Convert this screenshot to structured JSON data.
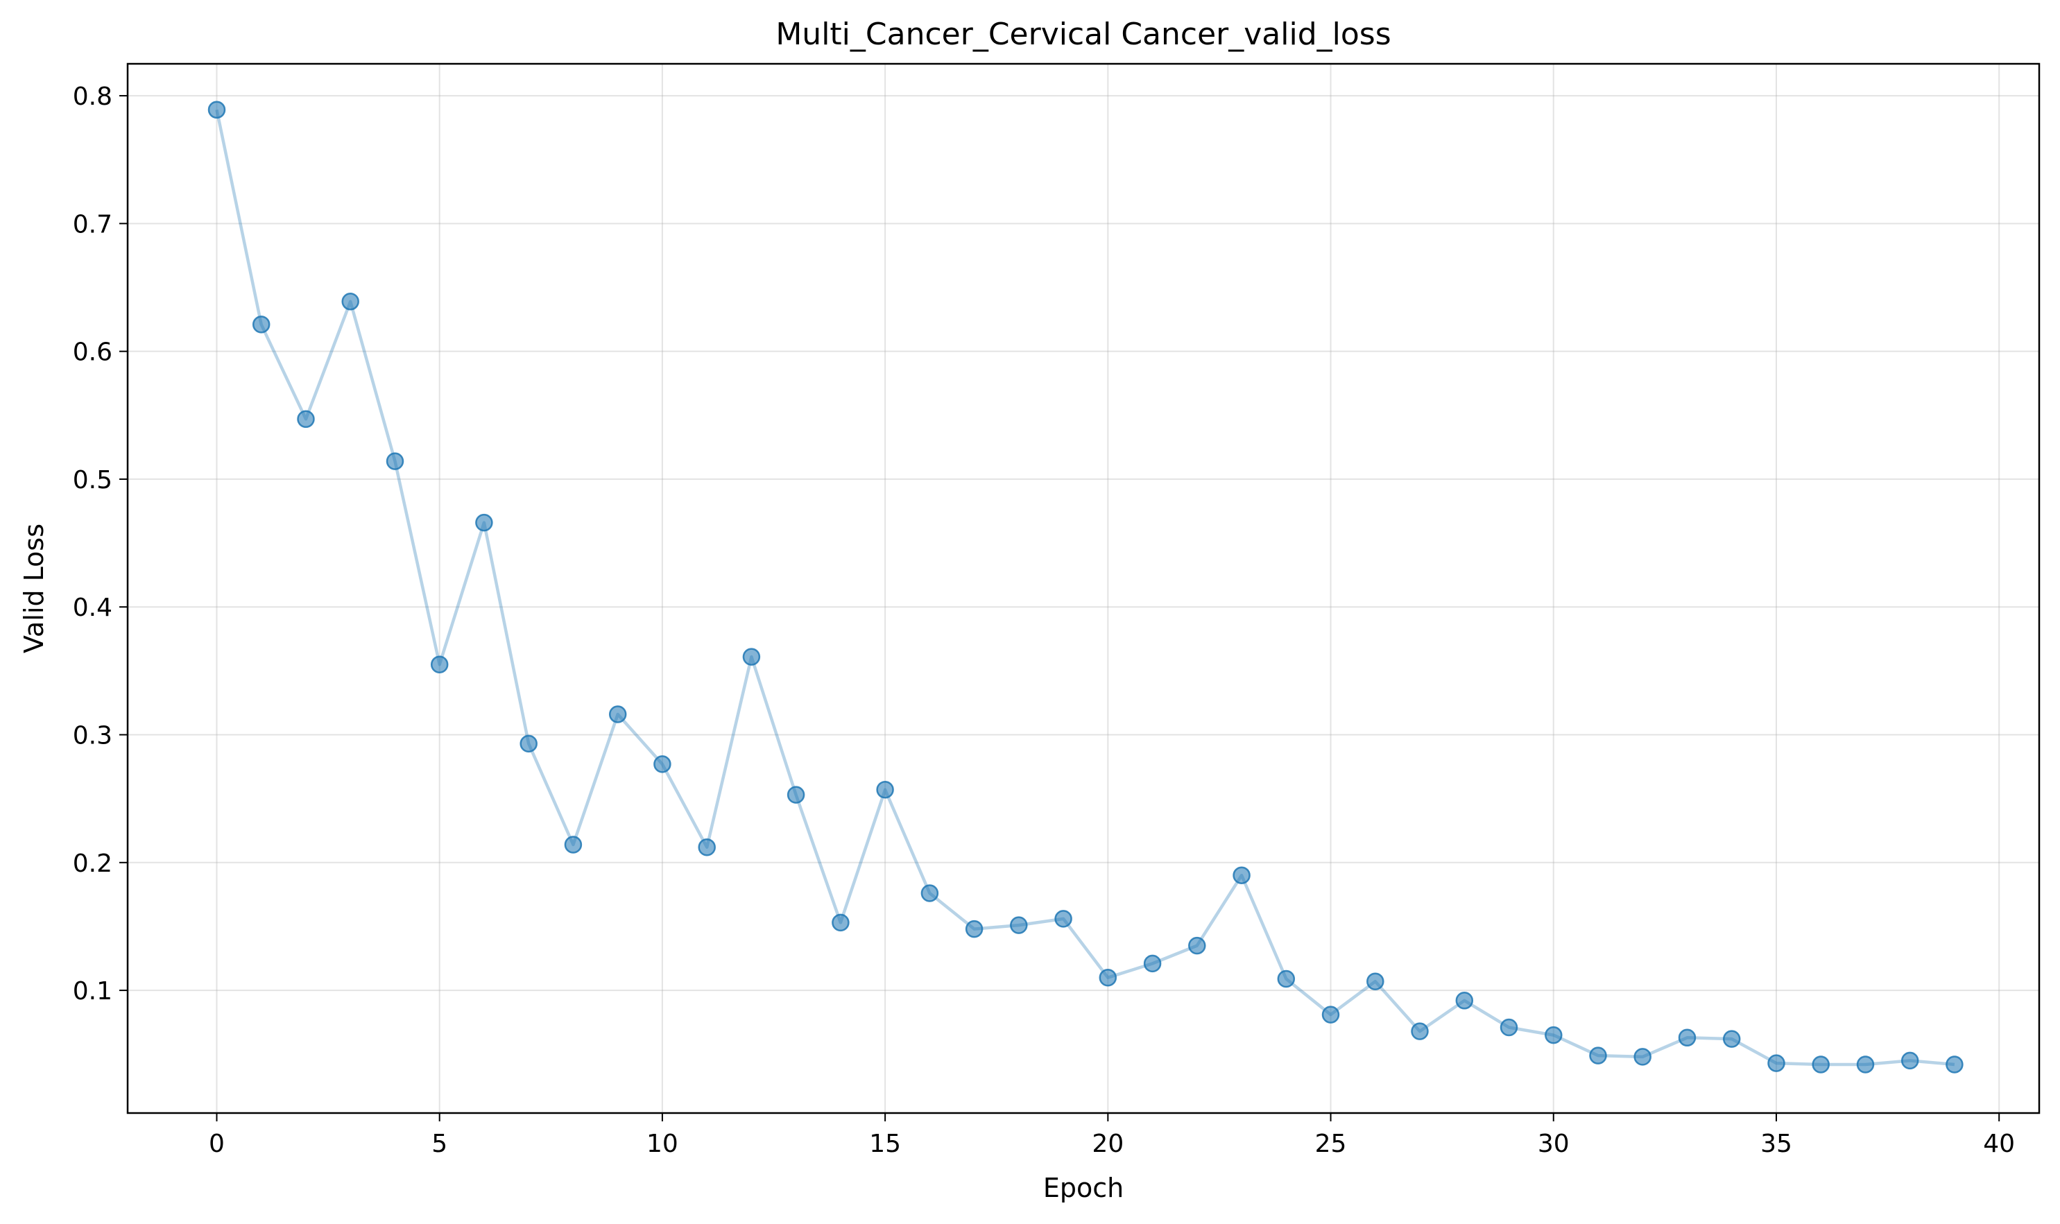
{
  "chart_data": {
    "type": "line",
    "title": "Multi_Cancer_Cervical Cancer_valid_loss",
    "xlabel": "Epoch",
    "ylabel": "Valid Loss",
    "xlim": [
      -2,
      40.9
    ],
    "ylim": [
      0.004,
      0.825
    ],
    "xticks": [
      0,
      5,
      10,
      15,
      20,
      25,
      30,
      35,
      40
    ],
    "xtick_labels": [
      "0",
      "5",
      "10",
      "15",
      "20",
      "25",
      "30",
      "35",
      "40"
    ],
    "yticks": [
      0.1,
      0.2,
      0.3,
      0.4,
      0.5,
      0.6,
      0.7,
      0.8
    ],
    "ytick_labels": [
      "0.1",
      "0.2",
      "0.3",
      "0.4",
      "0.5",
      "0.6",
      "0.7",
      "0.8"
    ],
    "grid": true,
    "colors": {
      "line": "#1f77b4",
      "marker": "#1f77b4"
    },
    "series": [
      {
        "x": [
          0,
          1,
          2,
          3,
          4,
          5,
          6,
          7,
          8,
          9,
          10,
          11,
          12,
          13,
          14,
          15,
          16,
          17,
          18,
          19,
          20,
          21,
          22,
          23,
          24,
          25,
          26,
          27,
          28,
          29,
          30,
          31,
          32,
          33,
          34,
          35,
          36,
          37,
          38,
          39
        ],
        "values": [
          0.789,
          0.621,
          0.547,
          0.639,
          0.514,
          0.355,
          0.466,
          0.293,
          0.214,
          0.316,
          0.277,
          0.212,
          0.361,
          0.253,
          0.153,
          0.257,
          0.176,
          0.148,
          0.151,
          0.156,
          0.11,
          0.121,
          0.135,
          0.19,
          0.109,
          0.081,
          0.107,
          0.068,
          0.092,
          0.071,
          0.065,
          0.049,
          0.048,
          0.063,
          0.062,
          0.043,
          0.042,
          0.042,
          0.045,
          0.042
        ]
      }
    ]
  }
}
